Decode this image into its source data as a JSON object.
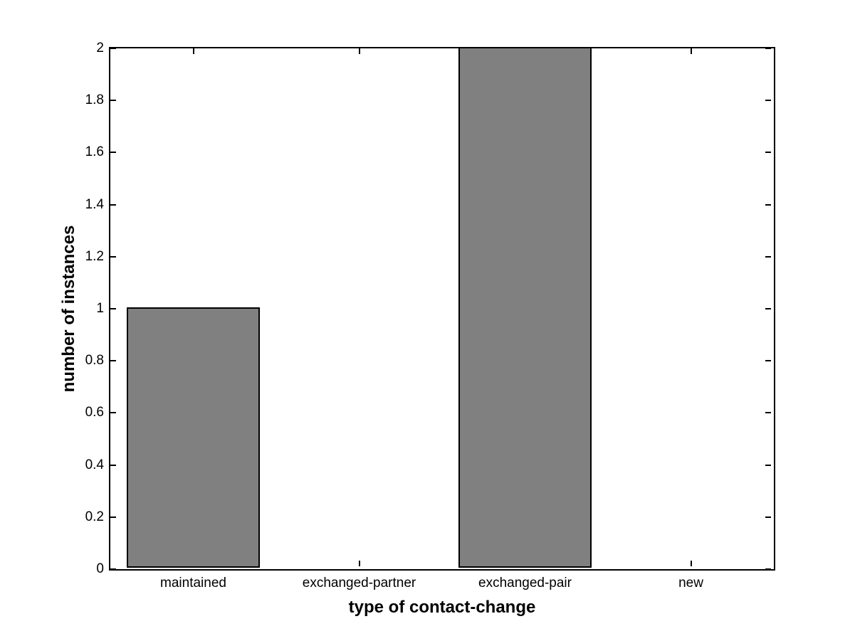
{
  "chart_data": {
    "type": "bar",
    "title": "",
    "xlabel": "type of contact-change",
    "ylabel": "number of instances",
    "categories": [
      "maintained",
      "exchanged-partner",
      "exchanged-pair",
      "new"
    ],
    "values": [
      1,
      0,
      2,
      0
    ],
    "ylim": [
      0,
      2
    ],
    "yticks": [
      0,
      0.2,
      0.4,
      0.6,
      0.8,
      1,
      1.2,
      1.4,
      1.6,
      1.8,
      2
    ],
    "ytick_labels": [
      "0",
      "0.2",
      "0.4",
      "0.6",
      "0.8",
      "1",
      "1.2",
      "1.4",
      "1.6",
      "1.8",
      "2"
    ],
    "bar_width_fraction": 0.8,
    "grid": false,
    "legend": null,
    "box": true,
    "tick_direction": "in",
    "colors": {
      "bar_fill": "#808080",
      "bar_edge": "#000000",
      "axis": "#000000",
      "background": "#ffffff",
      "text": "#000000"
    }
  }
}
